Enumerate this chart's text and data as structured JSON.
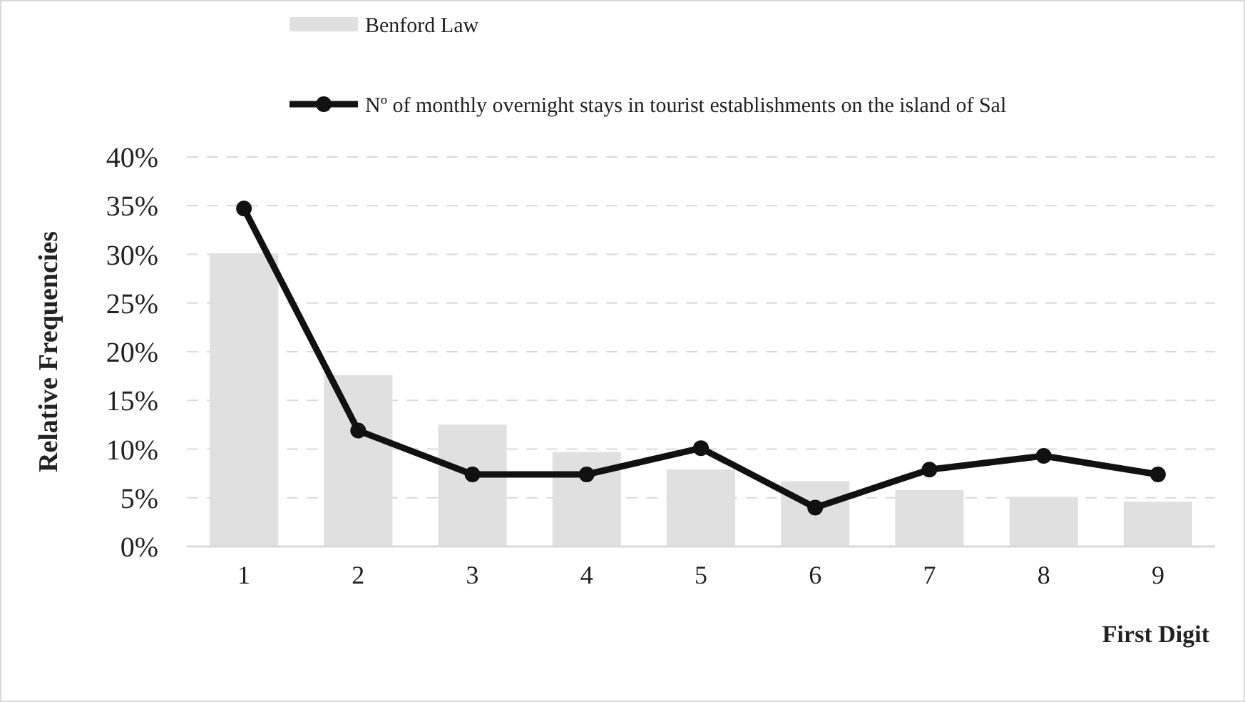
{
  "chart_data": {
    "type": "bar",
    "xlabel": "First Digit",
    "ylabel": "Relative Frequencies",
    "categories": [
      "1",
      "2",
      "3",
      "4",
      "5",
      "6",
      "7",
      "8",
      "9"
    ],
    "series": [
      {
        "name": "Benford Law",
        "color": "#e0e0e0",
        "values": [
          30.1,
          17.6,
          12.5,
          9.7,
          7.9,
          6.7,
          5.8,
          5.1,
          4.6
        ]
      },
      {
        "name": "Nº of monthly overnight stays in tourist establishments on the island of Sal",
        "type": "line",
        "color": "#111111",
        "values": [
          34.7,
          11.9,
          7.4,
          7.4,
          10.1,
          4.0,
          7.9,
          9.3,
          7.4
        ]
      }
    ],
    "ylim": [
      0,
      40
    ],
    "yticks": [
      {
        "value": 0,
        "label": "0%"
      },
      {
        "value": 5,
        "label": "5%"
      },
      {
        "value": 10,
        "label": "10%"
      },
      {
        "value": 15,
        "label": "15%"
      },
      {
        "value": 20,
        "label": "20%"
      },
      {
        "value": 25,
        "label": "25%"
      },
      {
        "value": 30,
        "label": "30%"
      },
      {
        "value": 35,
        "label": "35%"
      },
      {
        "value": 40,
        "label": "40%"
      }
    ],
    "grid": "y",
    "legend": "top",
    "marker": "circle",
    "line_style": "solid"
  }
}
